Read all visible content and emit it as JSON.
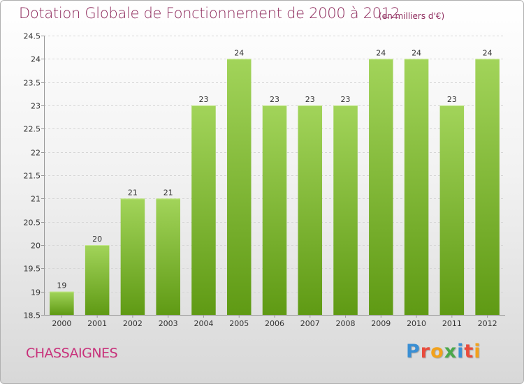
{
  "header": {
    "title": "Dotation Globale de Fonctionnement de 2000 à 2012",
    "unit": "(en milliers d'€)"
  },
  "footer": {
    "commune": "CHASSAIGNES",
    "brand_letters": [
      "P",
      "r",
      "o",
      "x",
      "i",
      "t",
      "i"
    ],
    "brand_colors": [
      "#3a8fd4",
      "#e94b3c",
      "#f3a21b",
      "#4aa84a",
      "#3a8fd4",
      "#e94b3c",
      "#f3a21b"
    ]
  },
  "colors": {
    "title": "#8e2a5c",
    "commune": "#c8307a",
    "bar_top": "#a2d45a",
    "bar_bottom": "#5f9a14"
  },
  "chart_data": {
    "type": "bar",
    "title": "Dotation Globale de Fonctionnement de 2000 à 2012",
    "subtitle": "(en milliers d'€)",
    "categories": [
      "2000",
      "2001",
      "2002",
      "2003",
      "2004",
      "2005",
      "2006",
      "2007",
      "2008",
      "2009",
      "2010",
      "2011",
      "2012"
    ],
    "values": [
      19,
      20,
      21,
      21,
      23,
      24,
      23,
      23,
      23,
      24,
      24,
      23,
      24
    ],
    "ylim": [
      18.5,
      24.5
    ],
    "yticks": [
      "18.5",
      "19",
      "19.5",
      "20",
      "20.5",
      "21",
      "21.5",
      "22",
      "22.5",
      "23",
      "23.5",
      "24",
      "24.5"
    ],
    "grid": true,
    "legend": "none"
  }
}
